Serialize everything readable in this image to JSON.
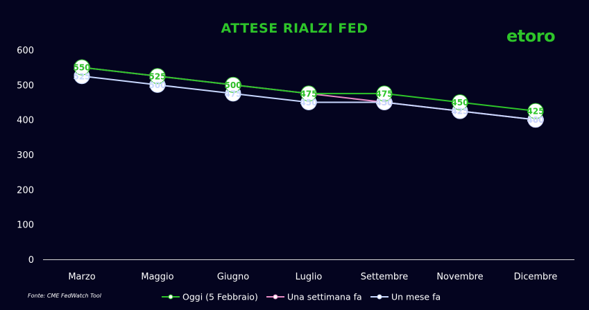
{
  "brand": {
    "logo_text": "etoro",
    "color": "#2ec52a"
  },
  "source_note": "Fonte: CME FedWatch Tool",
  "chart_data": {
    "type": "line",
    "title": "ATTESE RIALZI FED",
    "xlabel": "",
    "ylabel": "",
    "categories": [
      "Marzo",
      "Maggio",
      "Giugno",
      "Luglio",
      "Settembre",
      "Novembre",
      "Dicembre"
    ],
    "ylim": [
      0,
      600
    ],
    "yticks": [
      0,
      100,
      200,
      300,
      400,
      500,
      600
    ],
    "grid": false,
    "legend_position": "bottom",
    "series": [
      {
        "name": "Oggi (5 Febbraio)",
        "color": "#2ec52a",
        "values": [
          550,
          525,
          500,
          475,
          475,
          450,
          425
        ],
        "labels": [
          "550",
          "525",
          "500",
          "475",
          "475",
          "450",
          "425"
        ]
      },
      {
        "name": "Una settimana fa",
        "color": "#e78bc4",
        "values": [
          550,
          525,
          500,
          475,
          450,
          425,
          400
        ],
        "labels": [
          "550",
          "525",
          "500",
          "475",
          "450",
          "425",
          "400"
        ]
      },
      {
        "name": "Un mese fa",
        "color": "#c8d8ff",
        "values": [
          525,
          500,
          475,
          450,
          450,
          425,
          400
        ],
        "labels": [
          "525",
          "500",
          "475",
          "450",
          "450",
          "425",
          "400"
        ]
      }
    ]
  }
}
